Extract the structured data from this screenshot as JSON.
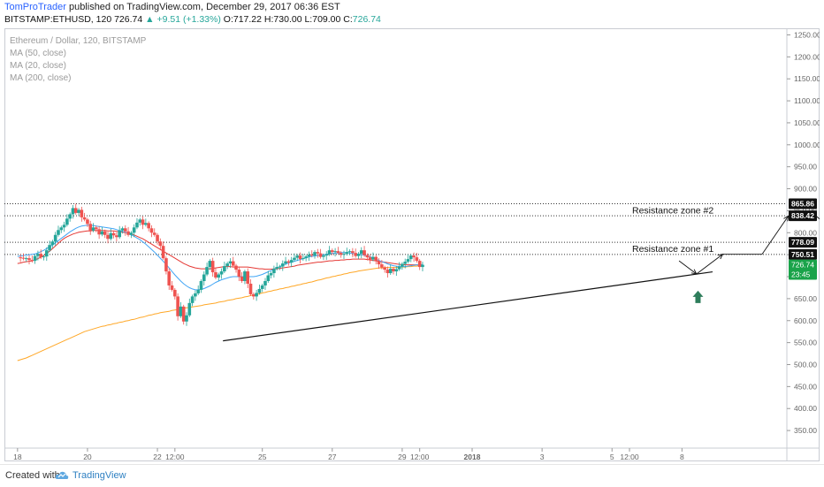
{
  "header": {
    "author": "TomProTrader",
    "published_text": "published on TradingView.com, December 29, 2017 06:36 EST",
    "symbol": "BITSTAMP:ETHUSD, 120",
    "last": "726.74",
    "change": "+9.51 (+1.33%)",
    "o_label": "O:",
    "o": "717.22",
    "h_label": "H:",
    "h": "730.00",
    "l_label": "L:",
    "l": "709.00",
    "c_label": "C:",
    "c": "726.74"
  },
  "legend": {
    "title": "Ethereum / Dollar, 120, BITSTAMP",
    "ma50": "MA (50, close)",
    "ma20": "MA (20, close)",
    "ma200": "MA (200, close)"
  },
  "footer": {
    "created": "Created with",
    "brand": "TradingView"
  },
  "colors": {
    "up": "#26a69a",
    "down": "#ef5350",
    "ma50": "#e53935",
    "ma20": "#42a5f5",
    "ma200": "#ffa726",
    "arrow_green": "#2e7d5b",
    "axis_text": "#666666"
  },
  "chart_data": {
    "type": "line",
    "yaxis": {
      "ticks": [
        350,
        400,
        450,
        500,
        550,
        600,
        650,
        700,
        750,
        800,
        850,
        900,
        950,
        1000,
        1050,
        1100,
        1150,
        1200,
        1250
      ],
      "tick_labels": [
        "350.00",
        "400.00",
        "450.00",
        "500.00",
        "550.00",
        "600.00",
        "650.00",
        "700.00",
        "750.00",
        "800.00",
        "850.00",
        "900.00",
        "950.00",
        "1000.00",
        "1050.00",
        "1100.00",
        "1150.00",
        "1200.00",
        "1250.00"
      ],
      "range": [
        310,
        1265
      ]
    },
    "xaxis": {
      "tick_labels": [
        "18",
        "20",
        "22",
        "12:00",
        "25",
        "27",
        "29",
        "12:00",
        "2018",
        "3",
        "5",
        "12:00",
        "8"
      ],
      "tick_positions_hours": [
        0,
        48,
        96,
        108,
        168,
        216,
        264,
        276,
        312,
        360,
        408,
        420,
        456
      ],
      "range_hours": [
        -9,
        528
      ]
    },
    "candles_hours_step": 2,
    "close": [
      744,
      743,
      741,
      742,
      738,
      736,
      747,
      752,
      744,
      746,
      760,
      772,
      780,
      795,
      806,
      812,
      818,
      832,
      842,
      856,
      845,
      852,
      835,
      830,
      820,
      805,
      812,
      808,
      796,
      803,
      795,
      786,
      799,
      794,
      790,
      805,
      810,
      803,
      795,
      800,
      812,
      823,
      830,
      818,
      822,
      810,
      800,
      795,
      780,
      770,
      742,
      712,
      680,
      670,
      655,
      610,
      632,
      598,
      612,
      640,
      655,
      662,
      670,
      690,
      705,
      722,
      736,
      710,
      698,
      705,
      712,
      724,
      730,
      735,
      725,
      716,
      700,
      690,
      712,
      684,
      660,
      655,
      663,
      672,
      680,
      690,
      703,
      708,
      718,
      722,
      723,
      730,
      735,
      732,
      738,
      743,
      748,
      740,
      742,
      746,
      750,
      748,
      756,
      753,
      745,
      748,
      751,
      760,
      756,
      758,
      754,
      750,
      752,
      756,
      758,
      754,
      747,
      752,
      760,
      749,
      744,
      739,
      745,
      735,
      728,
      721,
      716,
      708,
      718,
      712,
      717,
      723,
      729,
      734,
      740,
      748,
      744,
      736,
      722,
      727
    ],
    "ma50": [
      730,
      731,
      733,
      734,
      735,
      736,
      738,
      741,
      744,
      748,
      753,
      758,
      764,
      770,
      776,
      782,
      787,
      791,
      794,
      797,
      799,
      801,
      802,
      803,
      804,
      804,
      805,
      805,
      805,
      805,
      805,
      804,
      804,
      804,
      803,
      802,
      801,
      800,
      799,
      797,
      795,
      792,
      789,
      786,
      782,
      778,
      774,
      770,
      766,
      762,
      758,
      754,
      750,
      746,
      742,
      738,
      734,
      730,
      727,
      724,
      722,
      720,
      719,
      718,
      718,
      718,
      718,
      719,
      720,
      721,
      722,
      723,
      723,
      723,
      722,
      722,
      722,
      722,
      722,
      722,
      721,
      720,
      719,
      718,
      718,
      717,
      717,
      717,
      718,
      718,
      719,
      720,
      721,
      722,
      723,
      724,
      726,
      727,
      728,
      729,
      730,
      731,
      732,
      733,
      733,
      734,
      735,
      736,
      736,
      737,
      737,
      738,
      738,
      739,
      739,
      740,
      740,
      740,
      740,
      740,
      739,
      738,
      737,
      736,
      735,
      734,
      733,
      732,
      731,
      730,
      729,
      728,
      728,
      727,
      727,
      727,
      727,
      727,
      726,
      726
    ],
    "ma20": [
      746,
      747,
      748,
      749,
      750,
      751,
      752,
      754,
      757,
      760,
      764,
      768,
      772,
      777,
      782,
      787,
      792,
      797,
      802,
      806,
      810,
      813,
      815,
      816,
      817,
      817,
      816,
      815,
      814,
      813,
      812,
      811,
      810,
      809,
      807,
      805,
      803,
      801,
      798,
      795,
      792,
      788,
      784,
      779,
      774,
      768,
      762,
      756,
      749,
      742,
      735,
      728,
      720,
      712,
      704,
      697,
      690,
      684,
      679,
      675,
      672,
      670,
      670,
      671,
      673,
      676,
      679,
      683,
      687,
      690,
      693,
      695,
      697,
      699,
      700,
      700,
      700,
      700,
      700,
      700,
      700,
      700,
      701,
      703,
      705,
      708,
      711,
      714,
      717,
      720,
      723,
      726,
      729,
      731,
      733,
      735,
      737,
      739,
      741,
      743,
      745,
      746,
      747,
      748,
      749,
      750,
      751,
      752,
      753,
      754,
      754,
      755,
      755,
      755,
      754,
      753,
      752,
      751,
      750,
      749,
      747,
      745,
      743,
      740,
      737,
      734,
      732,
      729,
      727,
      725,
      724,
      723,
      723,
      723,
      724,
      725,
      726,
      727,
      727,
      728
    ],
    "ma200": [
      509,
      511,
      513,
      515,
      518,
      521,
      524,
      527,
      530,
      533,
      536,
      539,
      542,
      545,
      548,
      551,
      554,
      557,
      560,
      563,
      566,
      569,
      572,
      575,
      577,
      579,
      581,
      583,
      585,
      587,
      588,
      590,
      591,
      593,
      594,
      596,
      597,
      599,
      600,
      602,
      603,
      605,
      607,
      608,
      610,
      612,
      613,
      615,
      616,
      618,
      619,
      620,
      621,
      623,
      624,
      625,
      626,
      628,
      629,
      630,
      631,
      632,
      633,
      634,
      636,
      637,
      638,
      639,
      640,
      642,
      643,
      644,
      646,
      647,
      648,
      650,
      651,
      652,
      654,
      655,
      657,
      658,
      660,
      661,
      663,
      664,
      666,
      667,
      669,
      670,
      672,
      673,
      675,
      676,
      678,
      679,
      681,
      682,
      684,
      685,
      687,
      688,
      690,
      692,
      693,
      695,
      697,
      698,
      700,
      701,
      703,
      704,
      706,
      707,
      709,
      710,
      711,
      713,
      714,
      715,
      716,
      717,
      718,
      719,
      720,
      720,
      721,
      721,
      721,
      721,
      721,
      722,
      722,
      722,
      723,
      723,
      724,
      724,
      725,
      725
    ],
    "resistance_levels": [
      750.51,
      778.09,
      838.42,
      865.86
    ],
    "resistance_labels": [
      "Resistance zone #1",
      "Resistance zone #2"
    ],
    "price_badges": [
      {
        "label": "865.86",
        "value": 865.86,
        "style": "dark"
      },
      {
        "label": "838.42",
        "value": 838.42,
        "style": "dark"
      },
      {
        "label": "778.09",
        "value": 778.09,
        "style": "dark"
      },
      {
        "label": "750.51",
        "value": 750.51,
        "style": "dark"
      },
      {
        "label": "726.74",
        "value": 726.74,
        "style": "green"
      },
      {
        "label": "23:45",
        "value": 705,
        "style": "green"
      }
    ],
    "support_trendline": [
      [
        141,
        554
      ],
      [
        477,
        711
      ]
    ],
    "projection_path": [
      [
        454,
        736
      ],
      [
        466,
        706
      ],
      [
        484,
        751
      ],
      [
        511,
        751
      ],
      [
        529,
        838
      ],
      [
        548,
        838
      ],
      [
        569,
        781
      ],
      [
        591,
        781
      ],
      [
        634,
        937
      ]
    ],
    "green_arrows": [
      [
        467,
        652
      ],
      [
        570,
        718
      ]
    ]
  }
}
